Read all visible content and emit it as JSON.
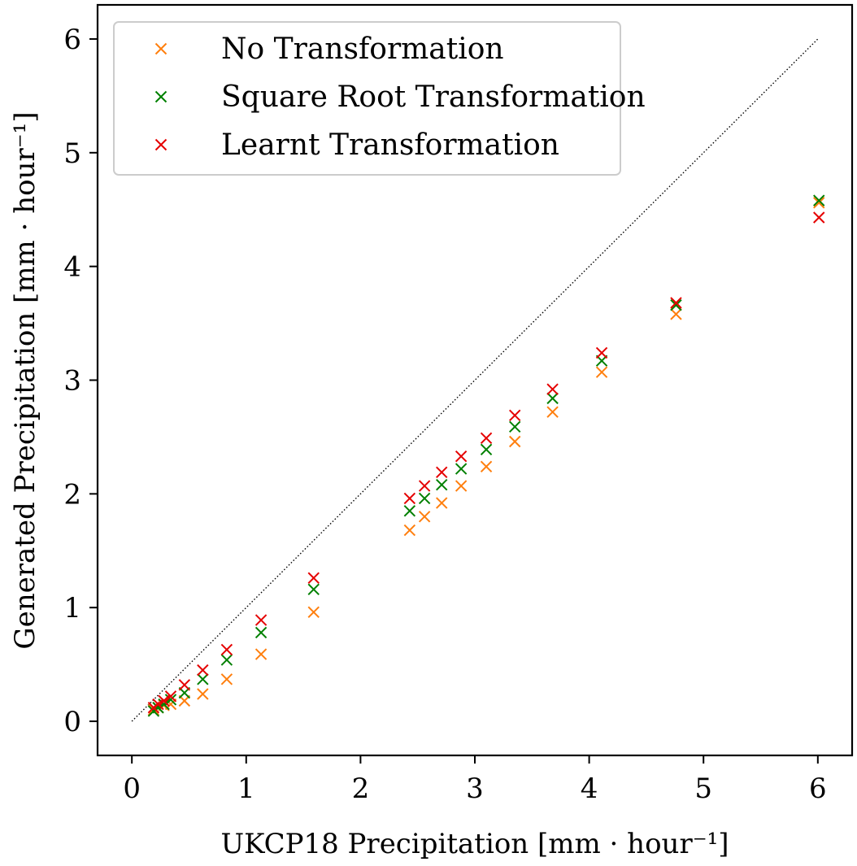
{
  "chart_data": {
    "type": "scatter",
    "xlabel": "UKCP18 Precipitation [mm · hour⁻¹]",
    "ylabel": "Generated Precipitation [mm · hour⁻¹]",
    "xlim": [
      -0.3,
      6.3
    ],
    "ylim": [
      -0.3,
      6.3
    ],
    "xticks": [
      0,
      1,
      2,
      3,
      4,
      5,
      6
    ],
    "yticks": [
      0,
      1,
      2,
      3,
      4,
      5,
      6
    ],
    "grid": false,
    "legend_position": "top-left",
    "reference_line": {
      "style": "dotted",
      "color": "#000000",
      "from": [
        0,
        0
      ],
      "to": [
        6,
        6
      ]
    },
    "x": [
      0.19,
      0.23,
      0.28,
      0.34,
      0.46,
      0.62,
      0.83,
      1.13,
      1.59,
      2.43,
      2.56,
      2.71,
      2.88,
      3.1,
      3.35,
      3.68,
      4.11,
      4.76,
      6.01
    ],
    "series": [
      {
        "name": "No Transformation",
        "color": "#ff7f0e",
        "marker": "x",
        "values": [
          0.1,
          0.12,
          0.14,
          0.15,
          0.18,
          0.24,
          0.37,
          0.59,
          0.96,
          1.68,
          1.8,
          1.92,
          2.07,
          2.24,
          2.46,
          2.72,
          3.07,
          3.58,
          4.56
        ]
      },
      {
        "name": "Square Root Transformation",
        "color": "#008000",
        "marker": "x",
        "values": [
          0.09,
          0.12,
          0.15,
          0.19,
          0.25,
          0.37,
          0.54,
          0.78,
          1.16,
          1.85,
          1.96,
          2.08,
          2.22,
          2.39,
          2.59,
          2.84,
          3.17,
          3.66,
          4.58
        ]
      },
      {
        "name": "Learnt Transformation",
        "color": "#e50000",
        "marker": "x",
        "values": [
          0.12,
          0.15,
          0.18,
          0.22,
          0.32,
          0.45,
          0.63,
          0.89,
          1.26,
          1.96,
          2.07,
          2.19,
          2.33,
          2.49,
          2.69,
          2.92,
          3.24,
          3.68,
          4.43
        ]
      }
    ]
  }
}
